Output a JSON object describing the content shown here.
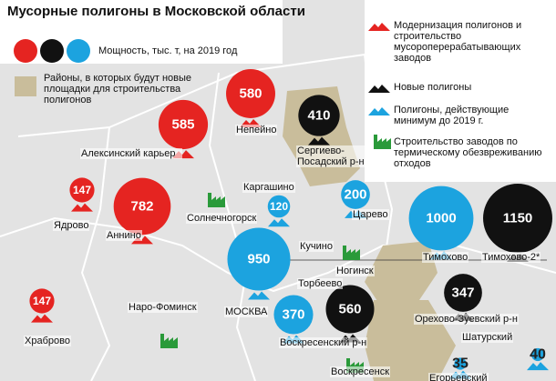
{
  "title": "Мусорные полигоны в Московской области",
  "legend": {
    "capacity": "Мощность, тыс. т, на 2019 год",
    "circle_colors": [
      "#e52421",
      "#111111",
      "#1ca3df"
    ],
    "areas": {
      "label": "Районы, в которых будут новые площадки для строительства полигонов",
      "color": "#c9bd9b"
    },
    "items": [
      {
        "label": "Модернизация полигонов и строительство мусороперерабатывающих заводов",
        "color": "#e52421",
        "icon": "mountain"
      },
      {
        "label": "Новые полигоны",
        "color": "#111111",
        "icon": "mountain"
      },
      {
        "label": "Полигоны, действующие минимум до 2019 г.",
        "color": "#1ca3df",
        "icon": "mountain"
      },
      {
        "label": "Строительство заводов по термическому обезвреживанию отходов",
        "color": "#2a9a3a",
        "icon": "factory"
      }
    ]
  },
  "sites": [
    {
      "value": 585,
      "color": "#e52421"
    },
    {
      "value": 580,
      "color": "#e52421"
    },
    {
      "value": 410,
      "color": "#111111"
    },
    {
      "value": 147,
      "color": "#e52421"
    },
    {
      "value": 782,
      "color": "#e52421"
    },
    {
      "value": 120,
      "color": "#1ca3df"
    },
    {
      "value": 200,
      "color": "#1ca3df"
    },
    {
      "value": 1000,
      "color": "#1ca3df"
    },
    {
      "value": 1150,
      "color": "#111111"
    },
    {
      "value": 950,
      "color": "#1ca3df"
    },
    {
      "value": 370,
      "color": "#1ca3df"
    },
    {
      "value": 560,
      "color": "#111111"
    },
    {
      "value": 347,
      "color": "#111111"
    },
    {
      "value": 147,
      "color": "#e52421"
    },
    {
      "value": 35,
      "color": "#1ca3df"
    },
    {
      "value": 40,
      "color": "#1ca3df"
    }
  ],
  "places": [
    "Алексинский карьер",
    "Непейно",
    "Сергиево-Посадский р-н",
    "Ядрово",
    "Аннино",
    "Каргашино",
    "Солнечногорск",
    "Царево",
    "Тимохово",
    "Тимохово-2*",
    "Кучино",
    "Ногинск",
    "Торбеево",
    "Наро-Фоминск",
    "МОСКВА",
    "Воскресенский р-н",
    "Воскресенск",
    "Орехово-Зуевский р-н",
    "Шатурский",
    "Егорьевский",
    "Храброво"
  ]
}
